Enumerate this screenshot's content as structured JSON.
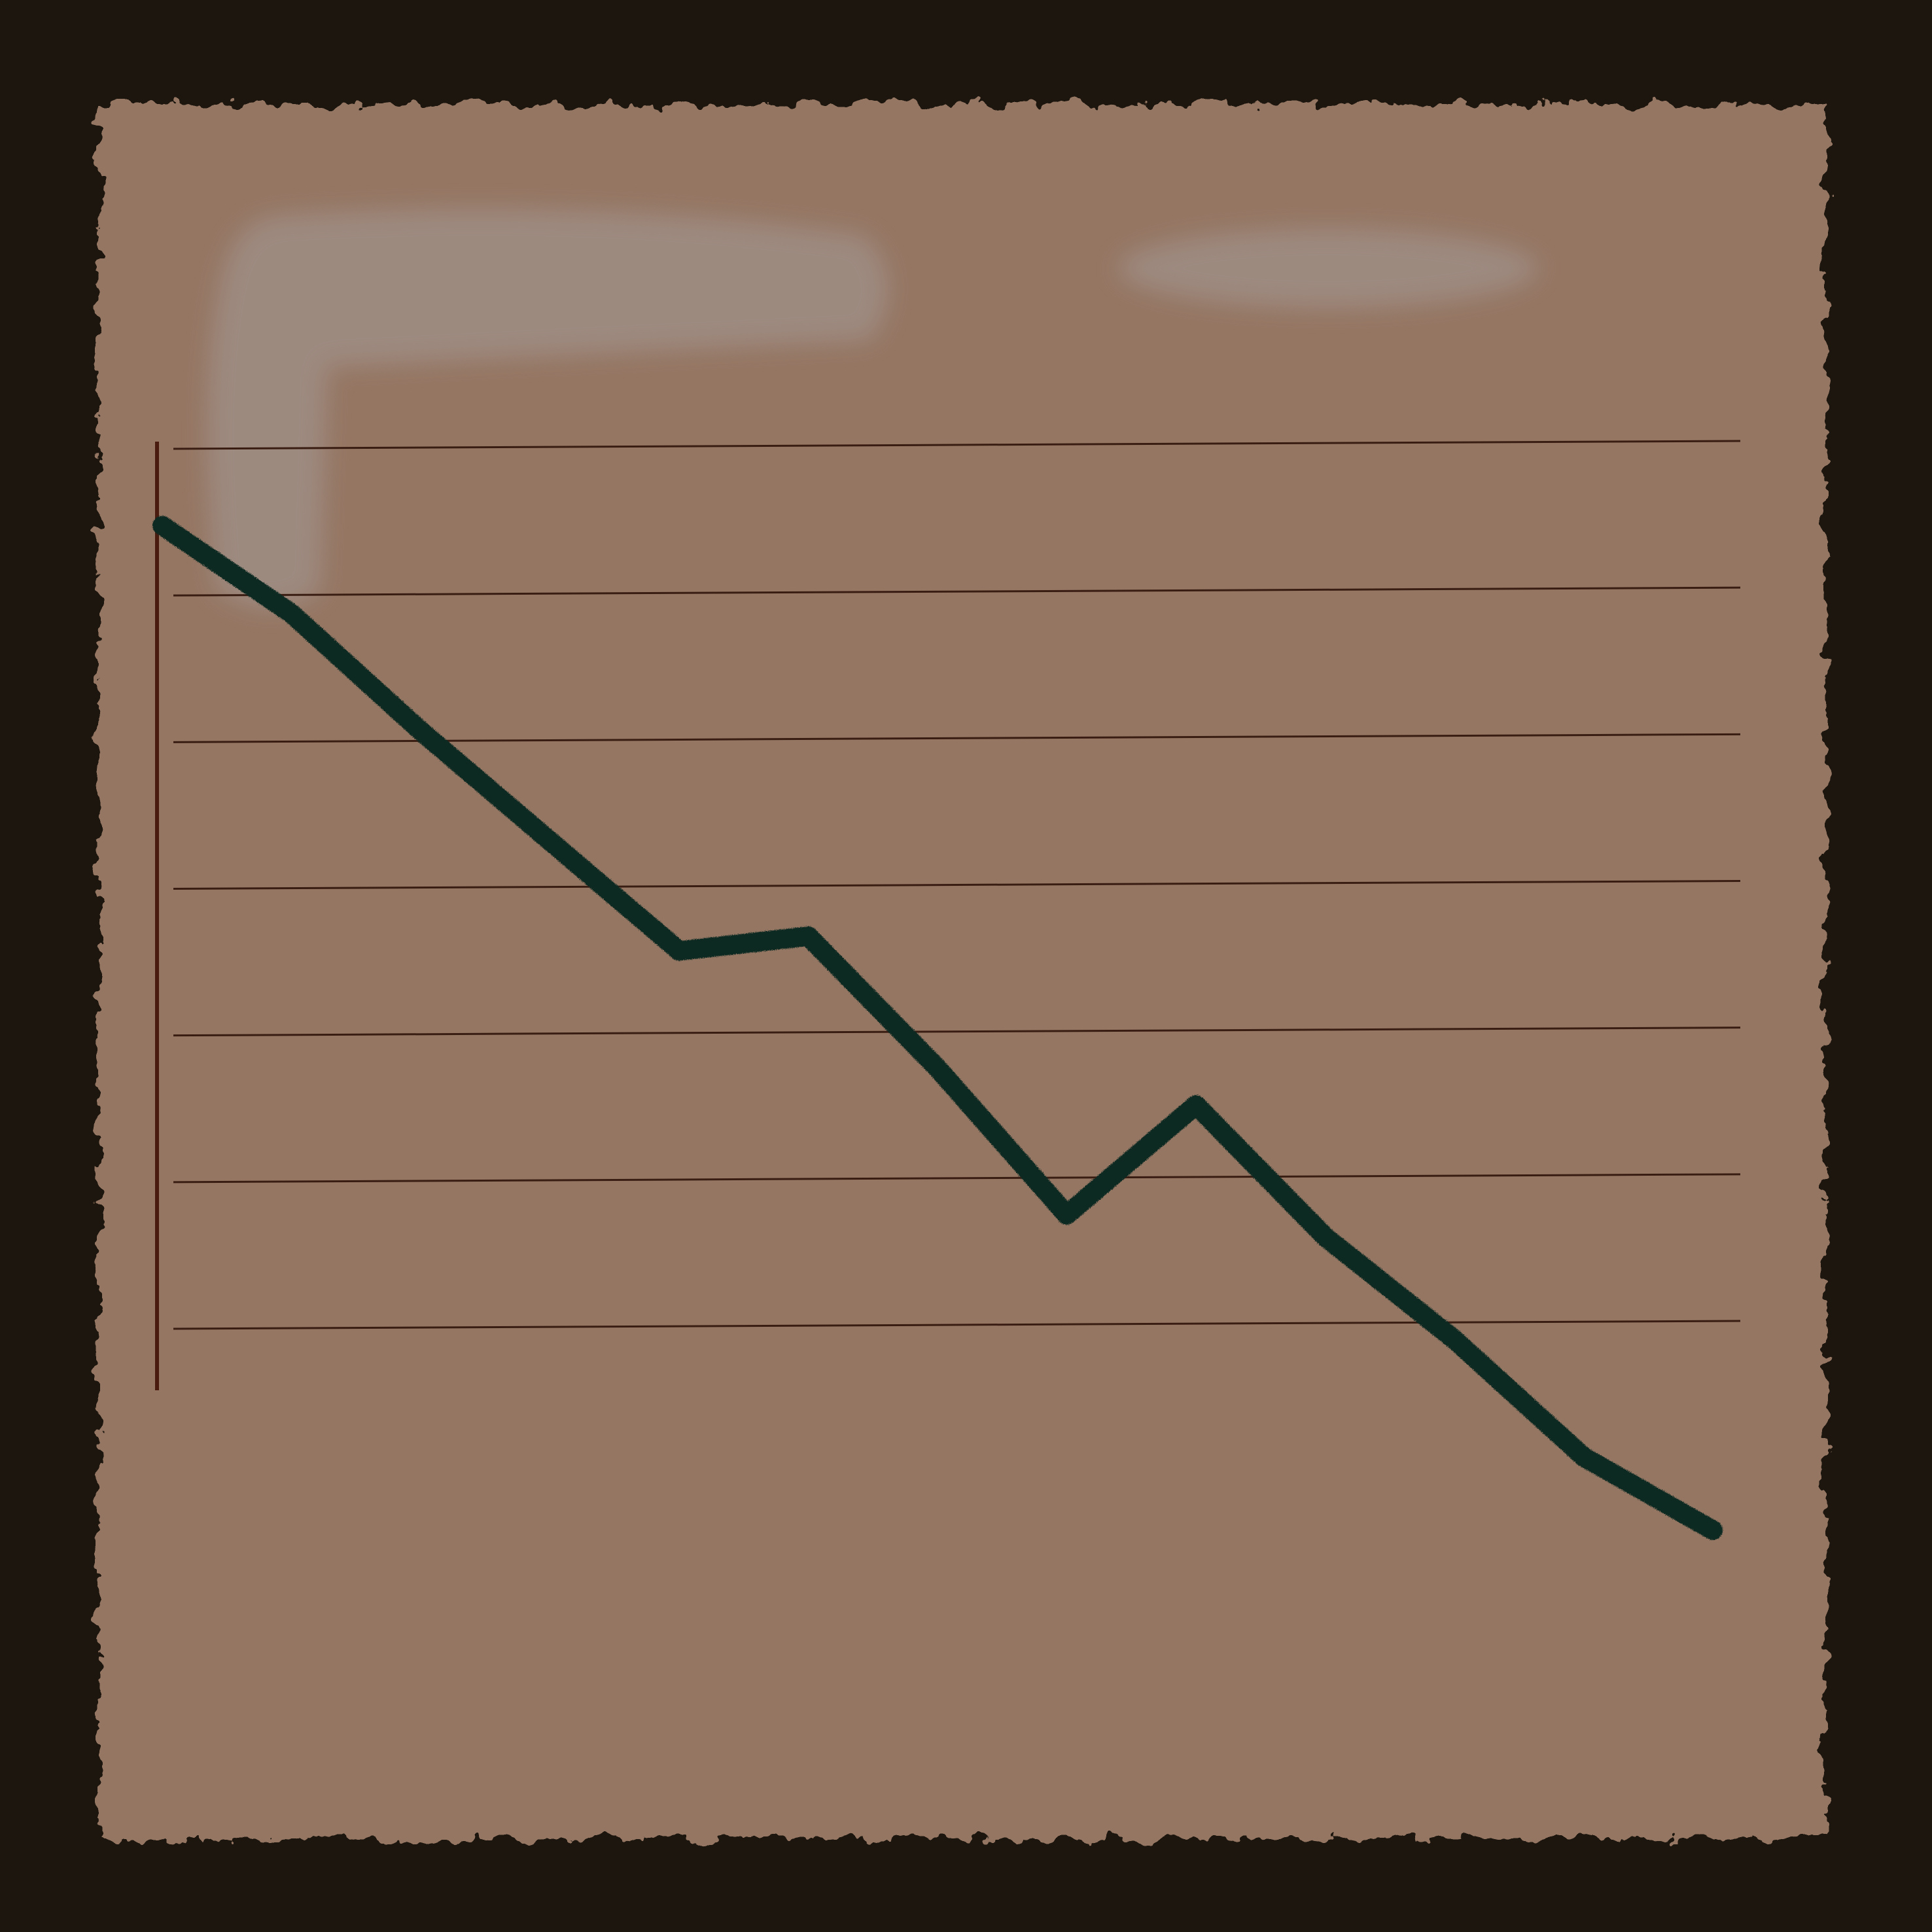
{
  "colors": {
    "frame": "#1c160e",
    "paper": "#957663",
    "axis": "#4a1c10",
    "grid": "#3a1d12",
    "line": "#0d2a22",
    "smudge": "#a09189"
  },
  "chart_data": {
    "type": "line",
    "title": "",
    "xlabel": "",
    "ylabel": "",
    "grid": true,
    "legend": "none",
    "x": [
      0,
      1,
      2,
      3,
      4,
      5,
      6,
      7,
      8,
      9,
      10,
      11,
      12
    ],
    "ylim": [
      0,
      7
    ],
    "gridlines": [
      1,
      2,
      3,
      4,
      5,
      6,
      7
    ],
    "series": [
      {
        "values": [
          6.45,
          5.85,
          5.05,
          4.3,
          3.55,
          3.65,
          2.75,
          1.75,
          2.5,
          1.6,
          0.9,
          0.1,
          -0.4
        ]
      }
    ]
  }
}
